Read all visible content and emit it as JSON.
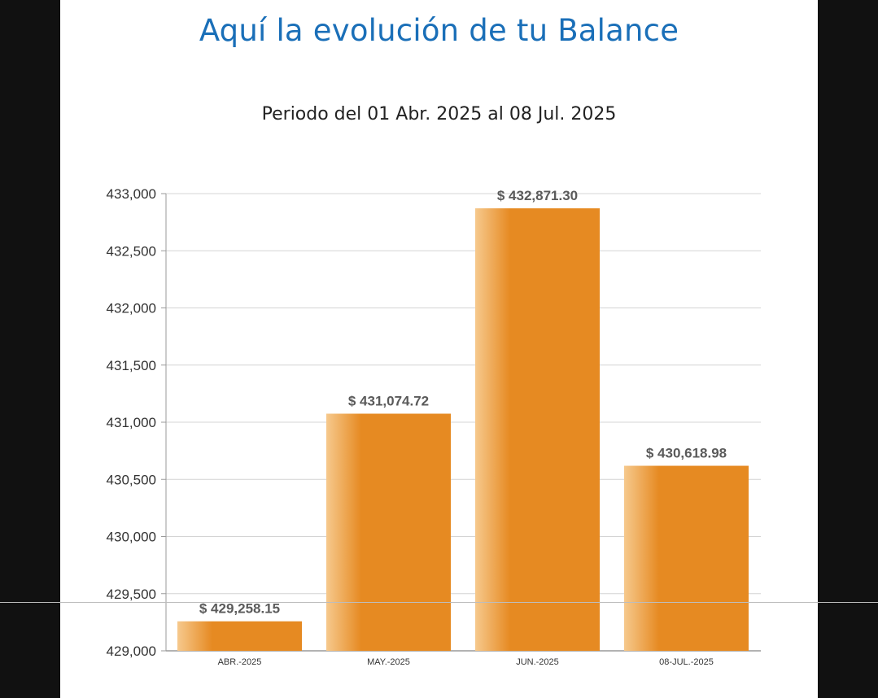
{
  "header": {
    "title": "Aquí la evolución de tu Balance",
    "subtitle": "Periodo del 01 Abr. 2025 al 08 Jul. 2025"
  },
  "colors": {
    "title": "#1a6fb8",
    "bar": "#e68a22",
    "bar_highlight": "#f6c98d",
    "grid": "#d4d4d4",
    "axis": "#9a9a9a"
  },
  "chart_data": {
    "type": "bar",
    "title": "Periodo del 01 Abr. 2025 al 08 Jul. 2025",
    "xlabel": "",
    "ylabel": "",
    "categories": [
      "ABR.-2025",
      "MAY.-2025",
      "JUN.-2025",
      "08-JUL.-2025"
    ],
    "values": [
      429258.15,
      431074.72,
      432871.3,
      430618.98
    ],
    "data_labels": [
      "$ 429,258.15",
      "$ 431,074.72",
      "$ 432,871.30",
      "$ 430,618.98"
    ],
    "ylim": [
      429000,
      433000
    ],
    "yticks": [
      429000,
      429500,
      430000,
      430500,
      431000,
      431500,
      432000,
      432500,
      433000
    ],
    "ytick_labels": [
      "429,000",
      "429,500",
      "430,000",
      "430,500",
      "431,000",
      "431,500",
      "432,000",
      "432,500",
      "433,000"
    ],
    "grid": true,
    "legend": "none"
  }
}
